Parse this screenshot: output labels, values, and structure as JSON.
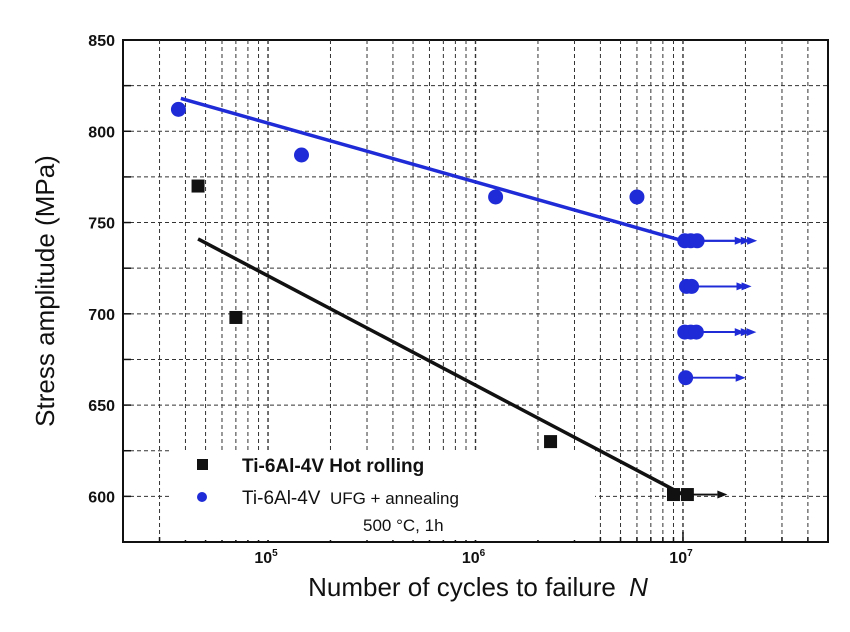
{
  "chart_data": {
    "type": "scatter",
    "title": "",
    "xlabel": "Number of cycles to failure",
    "xlabel_var": "N",
    "ylabel": "Stress amplitude (MPa)",
    "x_scale": "log",
    "xlim": [
      20000,
      50000000
    ],
    "ylim": [
      575,
      850
    ],
    "x_ticks": [
      {
        "value": 100000,
        "base": "10",
        "exp": "5"
      },
      {
        "value": 1000000,
        "base": "10",
        "exp": "6"
      },
      {
        "value": 10000000,
        "base": "10",
        "exp": "7"
      }
    ],
    "y_ticks": [
      600,
      650,
      700,
      750,
      800,
      850
    ],
    "grid": true,
    "legend_position": "bottom-left",
    "series": [
      {
        "name": "Ti-6Al-4V Hot rolling",
        "marker": "square",
        "color": "#111111",
        "points": [
          {
            "x": 46000,
            "y": 770
          },
          {
            "x": 70000,
            "y": 698
          },
          {
            "x": 2300000,
            "y": 630
          },
          {
            "x": 9000000,
            "y": 601,
            "runout": false
          },
          {
            "x": 10500000,
            "y": 601,
            "runout": true
          }
        ],
        "fit": {
          "x": [
            46000,
            10000000
          ],
          "y": [
            741,
            601
          ]
        }
      },
      {
        "name": "Ti-6Al-4V UFG + annealing",
        "name_parts": {
          "alloy": "Ti-6Al-4V",
          "process": "UFG + annealing",
          "condition": "500 °C, 1h"
        },
        "marker": "circle",
        "color": "#1f2bd6",
        "points": [
          {
            "x": 37000,
            "y": 812
          },
          {
            "x": 145000,
            "y": 787
          },
          {
            "x": 1250000,
            "y": 764
          },
          {
            "x": 6000000,
            "y": 764
          },
          {
            "x": 10200000,
            "y": 740,
            "runout": true
          },
          {
            "x": 10900000,
            "y": 740,
            "runout": true
          },
          {
            "x": 11700000,
            "y": 740,
            "runout": true
          },
          {
            "x": 10400000,
            "y": 715,
            "runout": true
          },
          {
            "x": 11000000,
            "y": 715,
            "runout": true
          },
          {
            "x": 10200000,
            "y": 690,
            "runout": true
          },
          {
            "x": 10900000,
            "y": 690,
            "runout": true
          },
          {
            "x": 11600000,
            "y": 690,
            "runout": true
          },
          {
            "x": 10300000,
            "y": 665,
            "runout": true
          }
        ],
        "fit": {
          "x": [
            38000,
            10000000
          ],
          "y": [
            818,
            740
          ]
        }
      }
    ]
  }
}
